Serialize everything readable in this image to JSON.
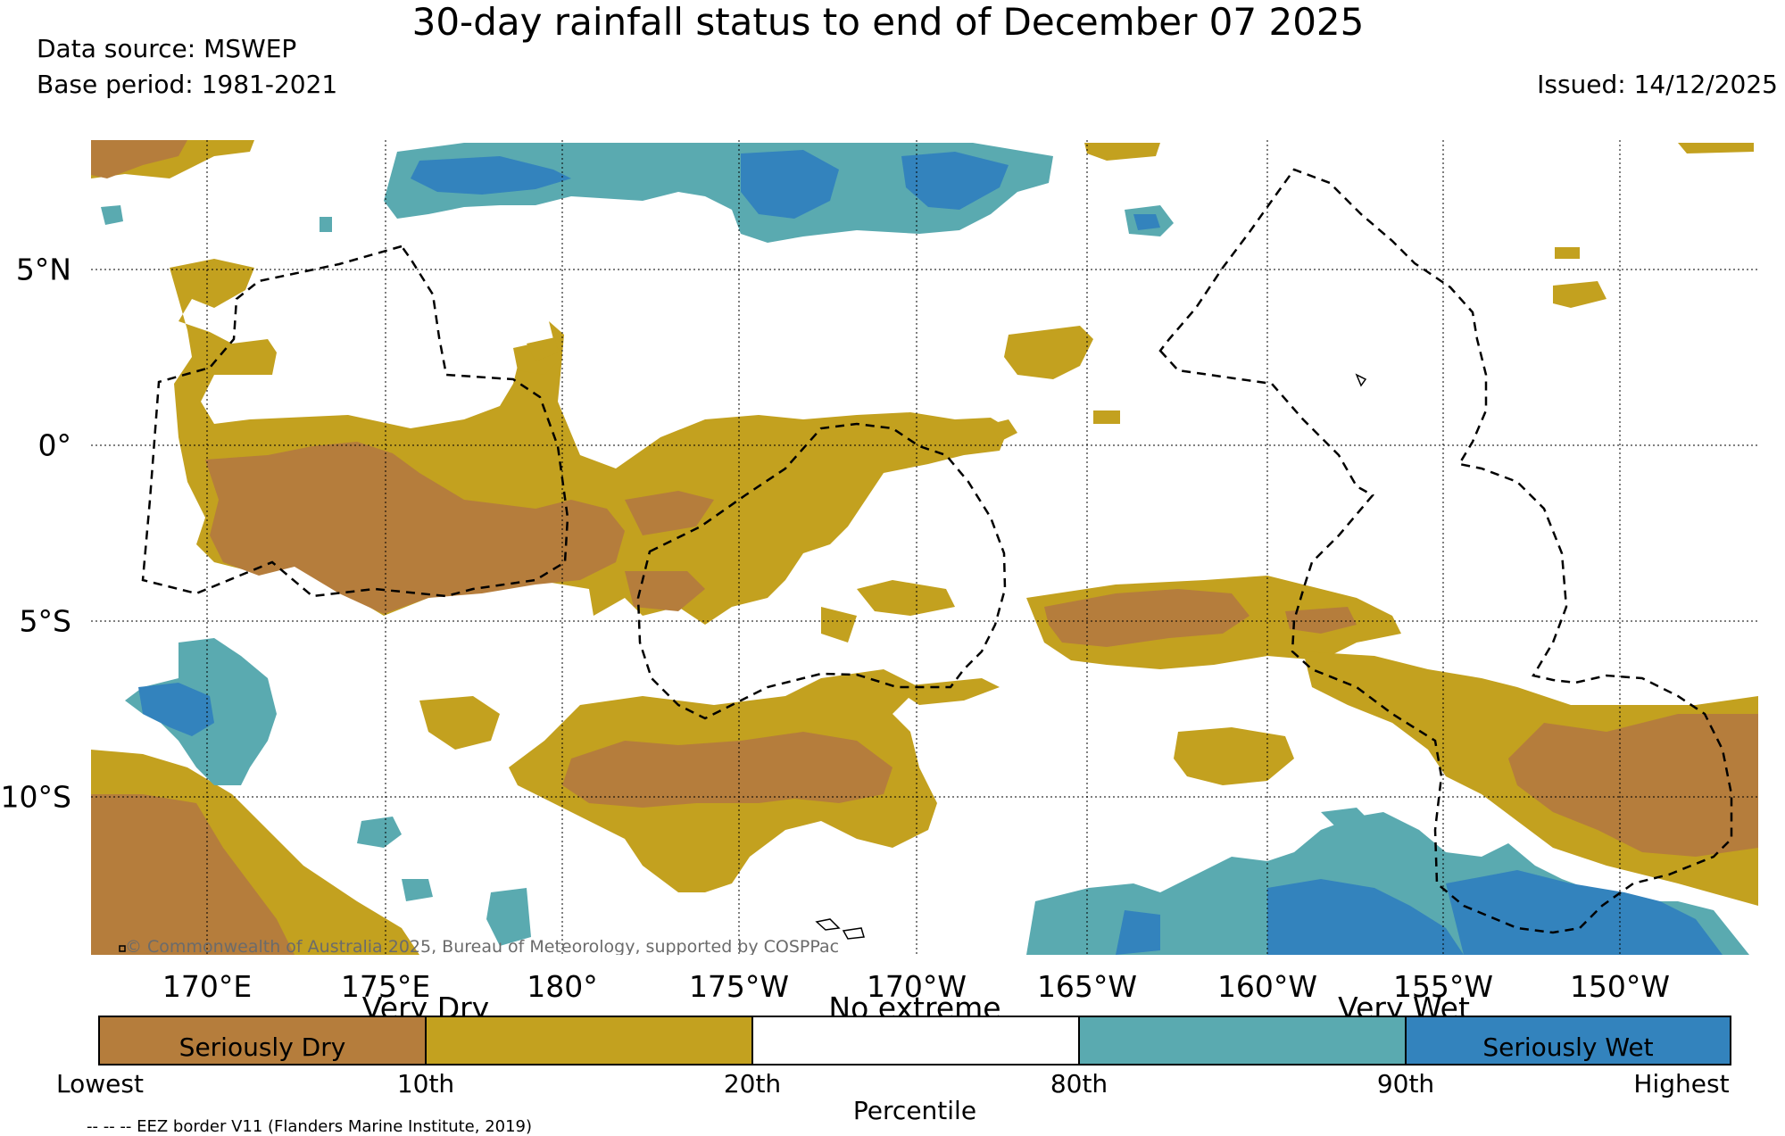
{
  "header": {
    "title": "30-day rainfall status to end of December 07 2025",
    "data_source": "Data source: MSWEP",
    "base_period": "Base period: 1981-2021",
    "issued": "Issued: 14/12/2025"
  },
  "map": {
    "lon_labels": [
      "170°E",
      "175°E",
      "180°",
      "175°W",
      "170°W",
      "165°W",
      "160°W",
      "155°W",
      "150°W"
    ],
    "lat_labels": [
      "5°N",
      "0°",
      "5°S",
      "10°S"
    ],
    "copyright": "© Commonwealth of Australia 2025, Bureau of Meteorology, supported by COSPPac"
  },
  "legend": {
    "categories": [
      "Seriously Dry",
      "Very Dry",
      "No extreme",
      "Very Wet",
      "Seriously Wet"
    ],
    "colors": {
      "seriously_dry": "#b57d3c",
      "very_dry": "#c3a11f",
      "no_extreme": "#ffffff",
      "very_wet": "#5aaab0",
      "seriously_wet": "#3383bd"
    },
    "ticks": [
      "Lowest",
      "10th",
      "20th",
      "80th",
      "90th",
      "Highest"
    ],
    "axis_label": "Percentile",
    "eez_note": "-- -- -- EEZ border V11 (Flanders Marine Institute, 2019)"
  }
}
